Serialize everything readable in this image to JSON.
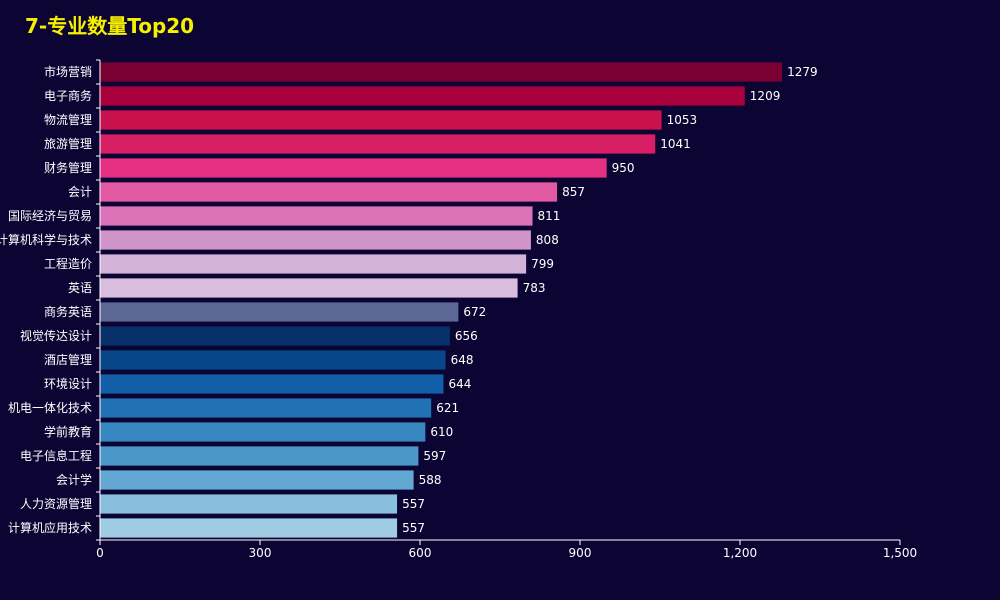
{
  "chart_data": {
    "type": "bar",
    "orientation": "horizontal",
    "title": "7-专业数量Top20",
    "categories": [
      "市场营销",
      "电子商务",
      "物流管理",
      "旅游管理",
      "财务管理",
      "会计",
      "国际经济与贸易",
      "计算机科学与技术",
      "工程造价",
      "英语",
      "商务英语",
      "视觉传达设计",
      "酒店管理",
      "环境设计",
      "机电一体化技术",
      "学前教育",
      "电子信息工程",
      "会计学",
      "人力资源管理",
      "计算机应用技术"
    ],
    "values": [
      1279,
      1209,
      1053,
      1041,
      950,
      857,
      811,
      808,
      799,
      783,
      672,
      656,
      648,
      644,
      621,
      610,
      597,
      588,
      557,
      557
    ],
    "colors": [
      "#7a0034",
      "#a8003d",
      "#c9114e",
      "#d81f66",
      "#e42f82",
      "#e15aa3",
      "#dc73b8",
      "#cf95c8",
      "#d4b3d8",
      "#d8bddf",
      "#5b6896",
      "#08306b",
      "#08468a",
      "#125ea8",
      "#2171b5",
      "#3787c0",
      "#4a98c9",
      "#62a8d3",
      "#89bedc",
      "#9fcbe3"
    ],
    "xlim": [
      0,
      1500
    ],
    "xticks": [
      0,
      300,
      600,
      900,
      1200,
      1500
    ],
    "xtick_labels": [
      "0",
      "300",
      "600",
      "900",
      "1,200",
      "1,500"
    ],
    "grid": false,
    "data_labels": true,
    "colors_theme": {
      "background": "#0c0433",
      "title": "#f5f000",
      "axis": "#ffffff",
      "label": "#ffffff"
    }
  }
}
